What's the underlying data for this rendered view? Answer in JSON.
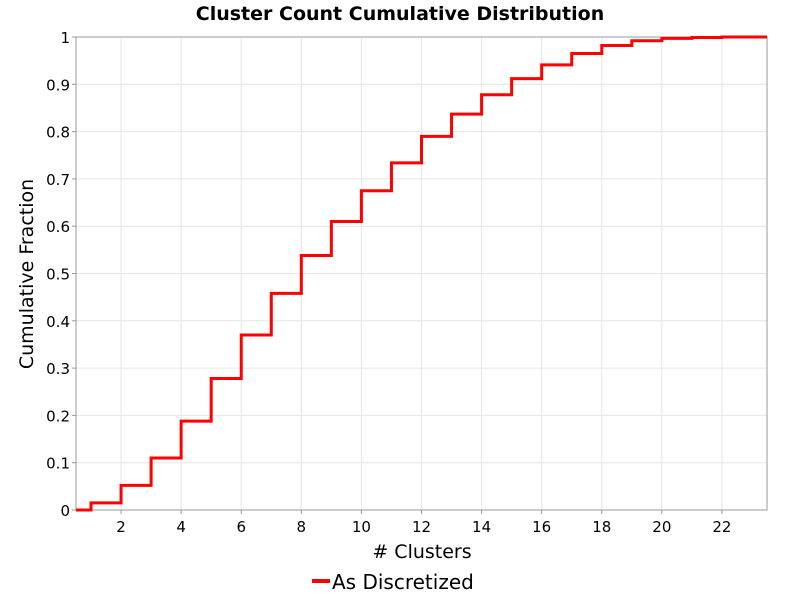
{
  "chart_data": {
    "type": "line",
    "step": true,
    "title": "Cluster Count Cumulative Distribution",
    "xlabel": "# Clusters",
    "ylabel": "Cumulative Fraction",
    "xlim": [
      0.5,
      23.5
    ],
    "ylim": [
      0,
      1
    ],
    "x_ticks": [
      2,
      4,
      6,
      8,
      10,
      12,
      14,
      16,
      18,
      20,
      22
    ],
    "y_ticks": [
      0,
      0.1,
      0.2,
      0.3,
      0.4,
      0.5,
      0.6,
      0.7,
      0.8,
      0.9,
      1
    ],
    "y_tick_labels": [
      "0",
      "0.1",
      "0.2",
      "0.3",
      "0.4",
      "0.5",
      "0.6",
      "0.7",
      "0.8",
      "0.9",
      "1"
    ],
    "grid": true,
    "legend_position": "bottom",
    "series": [
      {
        "name": "As Discretized",
        "color": "#ff0000",
        "x": [
          0.5,
          1,
          2,
          3,
          4,
          5,
          6,
          7,
          8,
          9,
          10,
          11,
          12,
          13,
          14,
          15,
          16,
          17,
          18,
          19,
          20,
          21,
          22,
          23.5
        ],
        "y": [
          0,
          0.015,
          0.052,
          0.11,
          0.188,
          0.278,
          0.37,
          0.458,
          0.538,
          0.61,
          0.675,
          0.734,
          0.79,
          0.837,
          0.878,
          0.912,
          0.941,
          0.965,
          0.982,
          0.992,
          0.997,
          0.999,
          1.0,
          1.0
        ]
      }
    ]
  }
}
